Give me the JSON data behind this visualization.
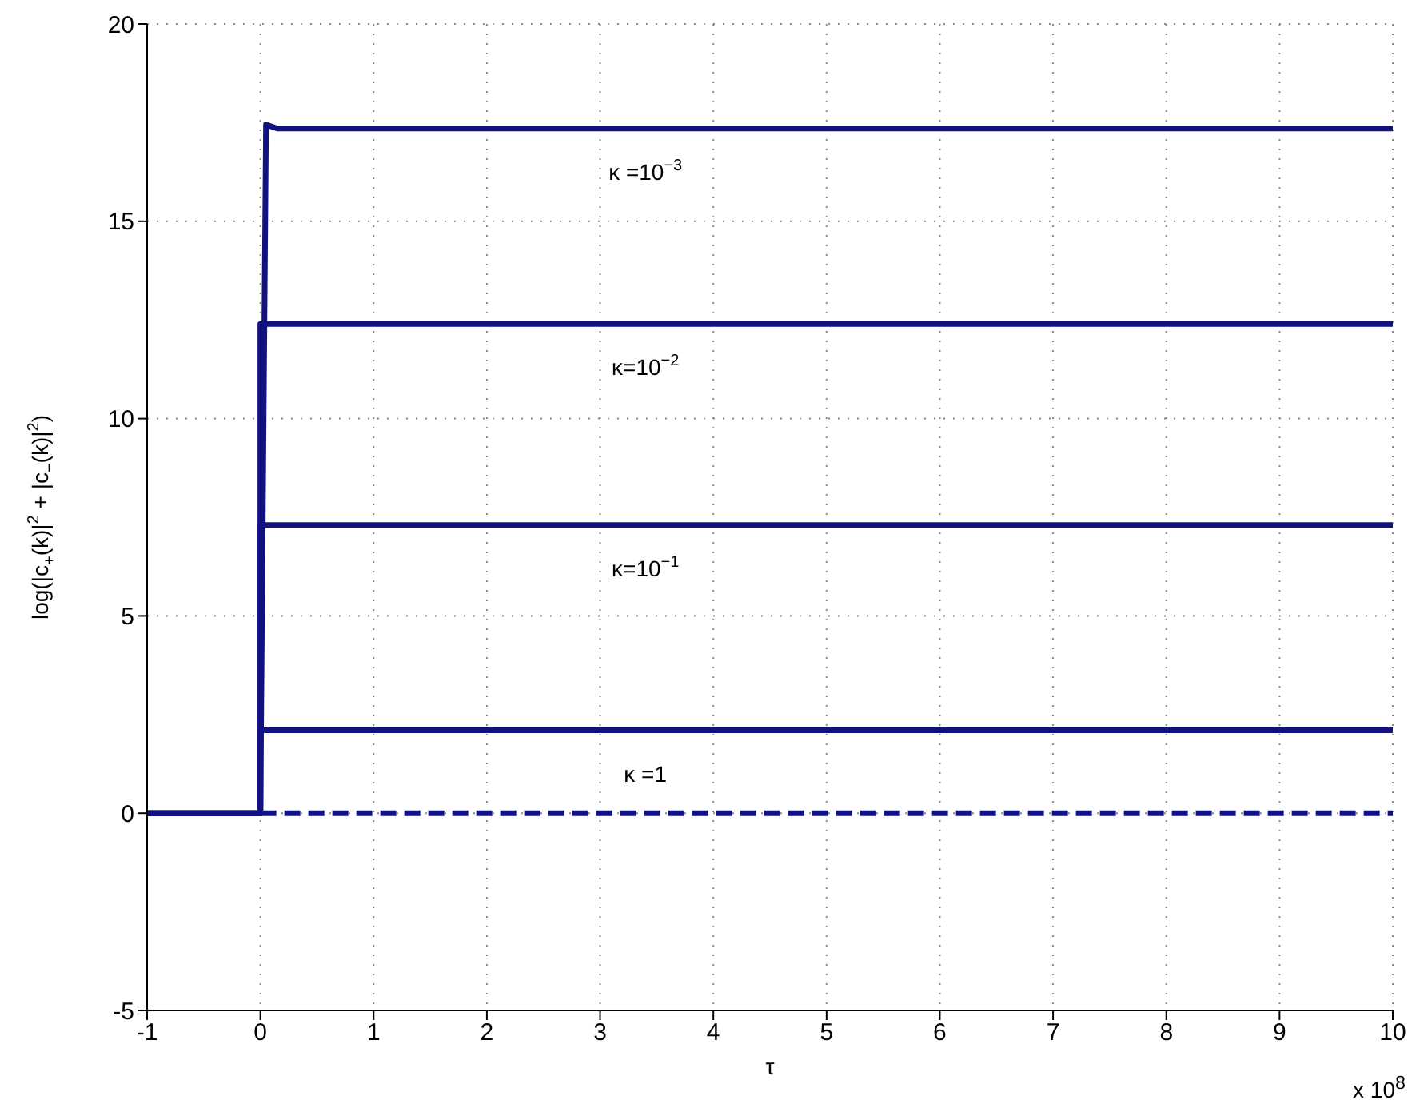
{
  "chart_data": {
    "type": "line",
    "xlabel": "τ",
    "ylabel": "log(|c$_{+}$(k)|$^{2}$ + |c$_{−}$(k)|$^{2}$)",
    "xlim": [
      -1,
      10
    ],
    "xticks": [
      -1,
      0,
      1,
      2,
      3,
      4,
      5,
      6,
      7,
      8,
      9,
      10
    ],
    "ylim": [
      -5,
      20
    ],
    "yticks": [
      -5,
      0,
      5,
      10,
      15,
      20
    ],
    "grid": true,
    "legend": false,
    "marker": "none",
    "line_style": "solid",
    "series": [
      {
        "color": "#111180",
        "x": [
          -1,
          0,
          0.05,
          0.15,
          10
        ],
        "values": [
          0,
          0,
          17.45,
          17.35,
          17.35
        ]
      },
      {
        "color": "#111180",
        "x": [
          -1,
          0,
          0,
          10
        ],
        "values": [
          0,
          0,
          12.4,
          12.4
        ]
      },
      {
        "color": "#111180",
        "x": [
          -1,
          0,
          0,
          10
        ],
        "values": [
          0,
          0,
          7.3,
          7.3
        ]
      },
      {
        "color": "#111180",
        "x": [
          -1,
          0,
          0,
          10
        ],
        "values": [
          0,
          0,
          2.1,
          2.1
        ]
      },
      {
        "color": "#111180",
        "x": [
          0,
          10
        ],
        "values": [
          0,
          0
        ],
        "line_style": "dashed"
      }
    ],
    "annotations": [
      "κ =10$^{−3}$",
      "κ=10$^{−2}$",
      "κ=10$^{−1}$",
      "κ =1",
      "x 10$^{8}$"
    ]
  }
}
